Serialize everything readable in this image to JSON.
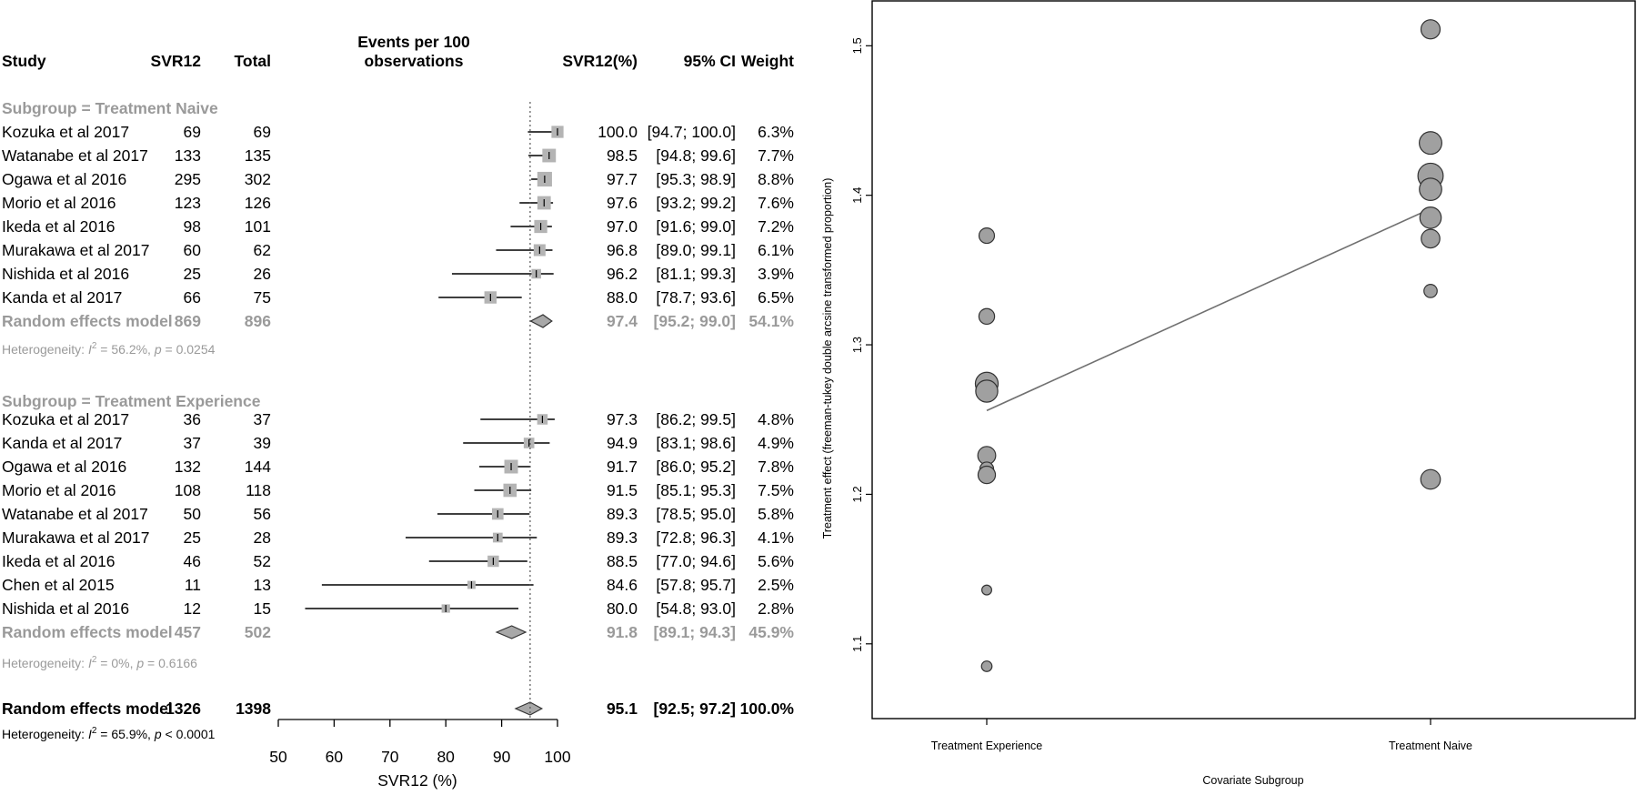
{
  "forest": {
    "headers": {
      "study": "Study",
      "events": "SVR12",
      "total": "Total",
      "plot_line1": "Events per 100",
      "plot_line2": "observations",
      "estimate": "SVR12(%)",
      "ci": "95% CI",
      "weight": "Weight"
    },
    "subgroups": [
      {
        "title": "Subgroup = Treatment Naive",
        "studies": [
          {
            "study": "Kozuka et al 2017",
            "events": "69",
            "total": "69",
            "est": 100.0,
            "lo": 94.7,
            "hi": 100.0,
            "w": 6.3,
            "est_text": "100.0",
            "ci_text": "[94.7; 100.0]",
            "weight_text": "6.3%"
          },
          {
            "study": "Watanabe et al 2017",
            "events": "133",
            "total": "135",
            "est": 98.5,
            "lo": 94.8,
            "hi": 99.6,
            "w": 7.7,
            "est_text": "98.5",
            "ci_text": "[94.8; 99.6]",
            "weight_text": "7.7%"
          },
          {
            "study": "Ogawa et al 2016",
            "events": "295",
            "total": "302",
            "est": 97.7,
            "lo": 95.3,
            "hi": 98.9,
            "w": 8.8,
            "est_text": "97.7",
            "ci_text": "[95.3; 98.9]",
            "weight_text": "8.8%"
          },
          {
            "study": "Morio et al 2016",
            "events": "123",
            "total": "126",
            "est": 97.6,
            "lo": 93.2,
            "hi": 99.2,
            "w": 7.6,
            "est_text": "97.6",
            "ci_text": "[93.2; 99.2]",
            "weight_text": "7.6%"
          },
          {
            "study": "Ikeda et al 2016",
            "events": "98",
            "total": "101",
            "est": 97.0,
            "lo": 91.6,
            "hi": 99.0,
            "w": 7.2,
            "est_text": "97.0",
            "ci_text": "[91.6; 99.0]",
            "weight_text": "7.2%"
          },
          {
            "study": "Murakawa et al 2017",
            "events": "60",
            "total": "62",
            "est": 96.8,
            "lo": 89.0,
            "hi": 99.1,
            "w": 6.1,
            "est_text": "96.8",
            "ci_text": "[89.0; 99.1]",
            "weight_text": "6.1%"
          },
          {
            "study": "Nishida et al 2016",
            "events": "25",
            "total": "26",
            "est": 96.2,
            "lo": 81.1,
            "hi": 99.3,
            "w": 3.9,
            "est_text": "96.2",
            "ci_text": "[81.1; 99.3]",
            "weight_text": "3.9%"
          },
          {
            "study": "Kanda et al 2017",
            "events": "66",
            "total": "75",
            "est": 88.0,
            "lo": 78.7,
            "hi": 93.6,
            "w": 6.5,
            "est_text": "88.0",
            "ci_text": "[78.7; 93.6]",
            "weight_text": "6.5%"
          }
        ],
        "pooled": {
          "label": "Random effects model",
          "events": "869",
          "total": "896",
          "est": 97.4,
          "lo": 95.2,
          "hi": 99.0,
          "est_text": "97.4",
          "ci_text": "[95.2; 99.0]",
          "weight_text": "54.1%"
        },
        "het_prefix": "Heterogeneity: ",
        "het_i": "I",
        "het_sup": "2",
        "het_rest": " = 56.2%, ",
        "het_p": "p",
        "het_pval": " = 0.0254"
      },
      {
        "title": "Subgroup = Treatment Experience",
        "studies": [
          {
            "study": "Kozuka et al 2017",
            "events": "36",
            "total": "37",
            "est": 97.3,
            "lo": 86.2,
            "hi": 99.5,
            "w": 4.8,
            "est_text": "97.3",
            "ci_text": "[86.2; 99.5]",
            "weight_text": "4.8%"
          },
          {
            "study": "Kanda et al 2017",
            "events": "37",
            "total": "39",
            "est": 94.9,
            "lo": 83.1,
            "hi": 98.6,
            "w": 4.9,
            "est_text": "94.9",
            "ci_text": "[83.1; 98.6]",
            "weight_text": "4.9%"
          },
          {
            "study": "Ogawa et al 2016",
            "events": "132",
            "total": "144",
            "est": 91.7,
            "lo": 86.0,
            "hi": 95.2,
            "w": 7.8,
            "est_text": "91.7",
            "ci_text": "[86.0; 95.2]",
            "weight_text": "7.8%"
          },
          {
            "study": "Morio et al 2016",
            "events": "108",
            "total": "118",
            "est": 91.5,
            "lo": 85.1,
            "hi": 95.3,
            "w": 7.5,
            "est_text": "91.5",
            "ci_text": "[85.1; 95.3]",
            "weight_text": "7.5%"
          },
          {
            "study": "Watanabe et al 2017",
            "events": "50",
            "total": "56",
            "est": 89.3,
            "lo": 78.5,
            "hi": 95.0,
            "w": 5.8,
            "est_text": "89.3",
            "ci_text": "[78.5; 95.0]",
            "weight_text": "5.8%"
          },
          {
            "study": "Murakawa et al 2017",
            "events": "25",
            "total": "28",
            "est": 89.3,
            "lo": 72.8,
            "hi": 96.3,
            "w": 4.1,
            "est_text": "89.3",
            "ci_text": "[72.8; 96.3]",
            "weight_text": "4.1%"
          },
          {
            "study": "Ikeda et al 2016",
            "events": "46",
            "total": "52",
            "est": 88.5,
            "lo": 77.0,
            "hi": 94.6,
            "w": 5.6,
            "est_text": "88.5",
            "ci_text": "[77.0; 94.6]",
            "weight_text": "5.6%"
          },
          {
            "study": "Chen et al 2015",
            "events": "11",
            "total": "13",
            "est": 84.6,
            "lo": 57.8,
            "hi": 95.7,
            "w": 2.5,
            "est_text": "84.6",
            "ci_text": "[57.8; 95.7]",
            "weight_text": "2.5%"
          },
          {
            "study": "Nishida et al 2016",
            "events": "12",
            "total": "15",
            "est": 80.0,
            "lo": 54.8,
            "hi": 93.0,
            "w": 2.8,
            "est_text": "80.0",
            "ci_text": "[54.8; 93.0]",
            "weight_text": "2.8%"
          }
        ],
        "pooled": {
          "label": "Random effects model",
          "events": "457",
          "total": "502",
          "est": 91.8,
          "lo": 89.1,
          "hi": 94.3,
          "est_text": "91.8",
          "ci_text": "[89.1; 94.3]",
          "weight_text": "45.9%"
        },
        "het_prefix": "Heterogeneity: ",
        "het_i": "I",
        "het_sup": "2",
        "het_rest": " = 0%, ",
        "het_p": "p",
        "het_pval": " = 0.6166"
      }
    ],
    "overall": {
      "label": "Random effects model",
      "events": "1326",
      "total": "1398",
      "est": 95.1,
      "lo": 92.5,
      "hi": 97.2,
      "est_text": "95.1",
      "ci_text": "[92.5; 97.2]",
      "weight_text": "100.0%"
    },
    "overall_het": {
      "prefix": "Heterogeneity: ",
      "i": "I",
      "sup": "2",
      "rest": " = 65.9%, ",
      "p": "p",
      "pval": " < 0.0001"
    },
    "xaxis": {
      "ticks": [
        50,
        60,
        70,
        80,
        90,
        100
      ],
      "label": "SVR12 (%)",
      "xlim": [
        50,
        100
      ],
      "reference": 95.1
    },
    "colors": {
      "box": "#b4b4b4",
      "subgroup_text": "#9a9a9a",
      "line": "#000000"
    }
  },
  "chart_data": [
    {
      "type": "forest",
      "title": "",
      "xlabel": "SVR12 (%)",
      "xlim": [
        50,
        100
      ],
      "categories": [
        "Kozuka et al 2017",
        "Watanabe et al 2017",
        "Ogawa et al 2016",
        "Morio et al 2016",
        "Ikeda et al 2016",
        "Murakawa et al 2017",
        "Nishida et al 2016",
        "Kanda et al 2017",
        "Kozuka et al 2017",
        "Kanda et al 2017",
        "Ogawa et al 2016",
        "Morio et al 2016",
        "Watanabe et al 2017",
        "Murakawa et al 2017",
        "Ikeda et al 2016",
        "Chen et al 2015",
        "Nishida et al 2016"
      ],
      "values": [
        100.0,
        98.5,
        97.7,
        97.6,
        97.0,
        96.8,
        96.2,
        88.0,
        97.3,
        94.9,
        91.7,
        91.5,
        89.3,
        89.3,
        88.5,
        84.6,
        80.0
      ],
      "pooled": {
        "Treatment Naive": 97.4,
        "Treatment Experience": 91.8,
        "Overall": 95.1
      }
    },
    {
      "type": "scatter",
      "title": "",
      "xlabel": "Covariate Subgroup",
      "ylabel": "Treatment effect (freeman-tukey double arcsine transformed proportion)",
      "categories": [
        "Treatment Experience",
        "Treatment Naive"
      ],
      "ylim": [
        1.05,
        1.53
      ],
      "yticks": [
        1.1,
        1.2,
        1.3,
        1.4,
        1.5
      ],
      "series": [
        {
          "name": "Treatment Experience",
          "points": [
            {
              "y": 1.373,
              "w": 4.8
            },
            {
              "y": 1.319,
              "w": 4.9
            },
            {
              "y": 1.274,
              "w": 7.8
            },
            {
              "y": 1.269,
              "w": 7.5
            },
            {
              "y": 1.226,
              "w": 5.8
            },
            {
              "y": 1.217,
              "w": 4.1
            },
            {
              "y": 1.213,
              "w": 5.6
            },
            {
              "y": 1.136,
              "w": 2.5
            },
            {
              "y": 1.085,
              "w": 2.8
            }
          ]
        },
        {
          "name": "Treatment Naive",
          "points": [
            {
              "y": 1.511,
              "w": 6.3
            },
            {
              "y": 1.435,
              "w": 7.7
            },
            {
              "y": 1.413,
              "w": 8.8
            },
            {
              "y": 1.404,
              "w": 7.6
            },
            {
              "y": 1.385,
              "w": 7.2
            },
            {
              "y": 1.371,
              "w": 6.1
            },
            {
              "y": 1.336,
              "w": 3.9
            },
            {
              "y": 1.21,
              "w": 6.5
            }
          ]
        }
      ],
      "regression": {
        "from": {
          "x": "Treatment Experience",
          "y": 1.256
        },
        "to": {
          "x": "Treatment Naive",
          "y": 1.391
        }
      },
      "colors": {
        "point_fill": "#a0a0a0",
        "point_stroke": "#333333",
        "line": "#707070"
      }
    }
  ]
}
